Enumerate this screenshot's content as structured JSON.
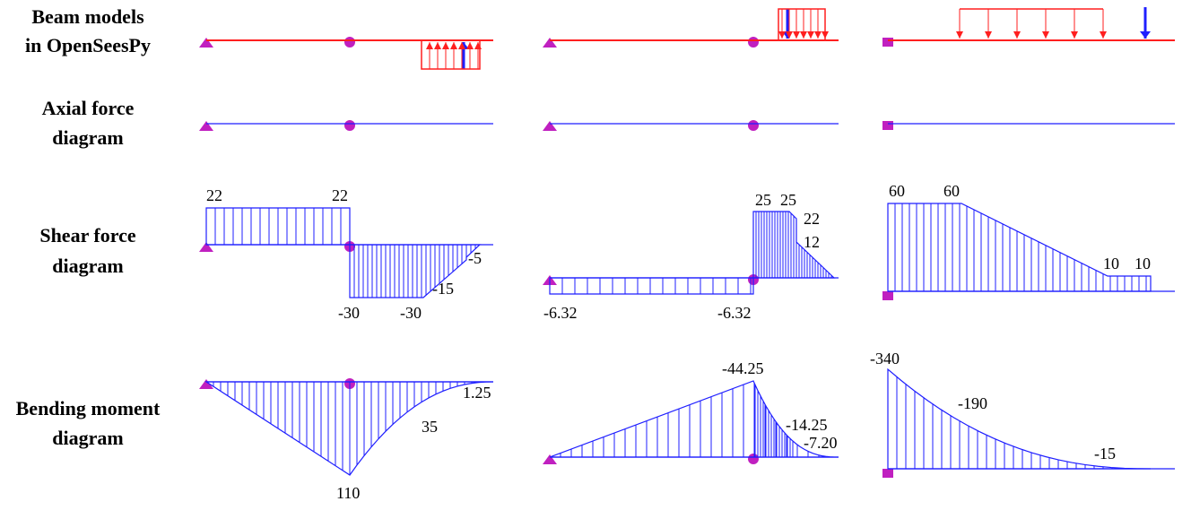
{
  "rows": [
    {
      "label": [
        "Beam models",
        "in OpenSeesPy"
      ]
    },
    {
      "label": [
        "Axial force",
        "diagram"
      ]
    },
    {
      "label": [
        "Shear force",
        "diagram"
      ]
    },
    {
      "label": [
        "Bending moment",
        "diagram"
      ]
    }
  ],
  "shear_labels": [
    [
      "22",
      "22",
      "-30",
      "-30",
      "-15",
      "-5"
    ],
    [
      "25",
      "25",
      "22",
      "12",
      "-6.32",
      "-6.32"
    ],
    [
      "60",
      "60",
      "10",
      "10"
    ]
  ],
  "moment_labels": [
    [
      "110",
      "35",
      "1.25"
    ],
    [
      "-44.25",
      "-14.25",
      "-7.20"
    ],
    [
      "-340",
      "-190",
      "-15"
    ]
  ]
}
